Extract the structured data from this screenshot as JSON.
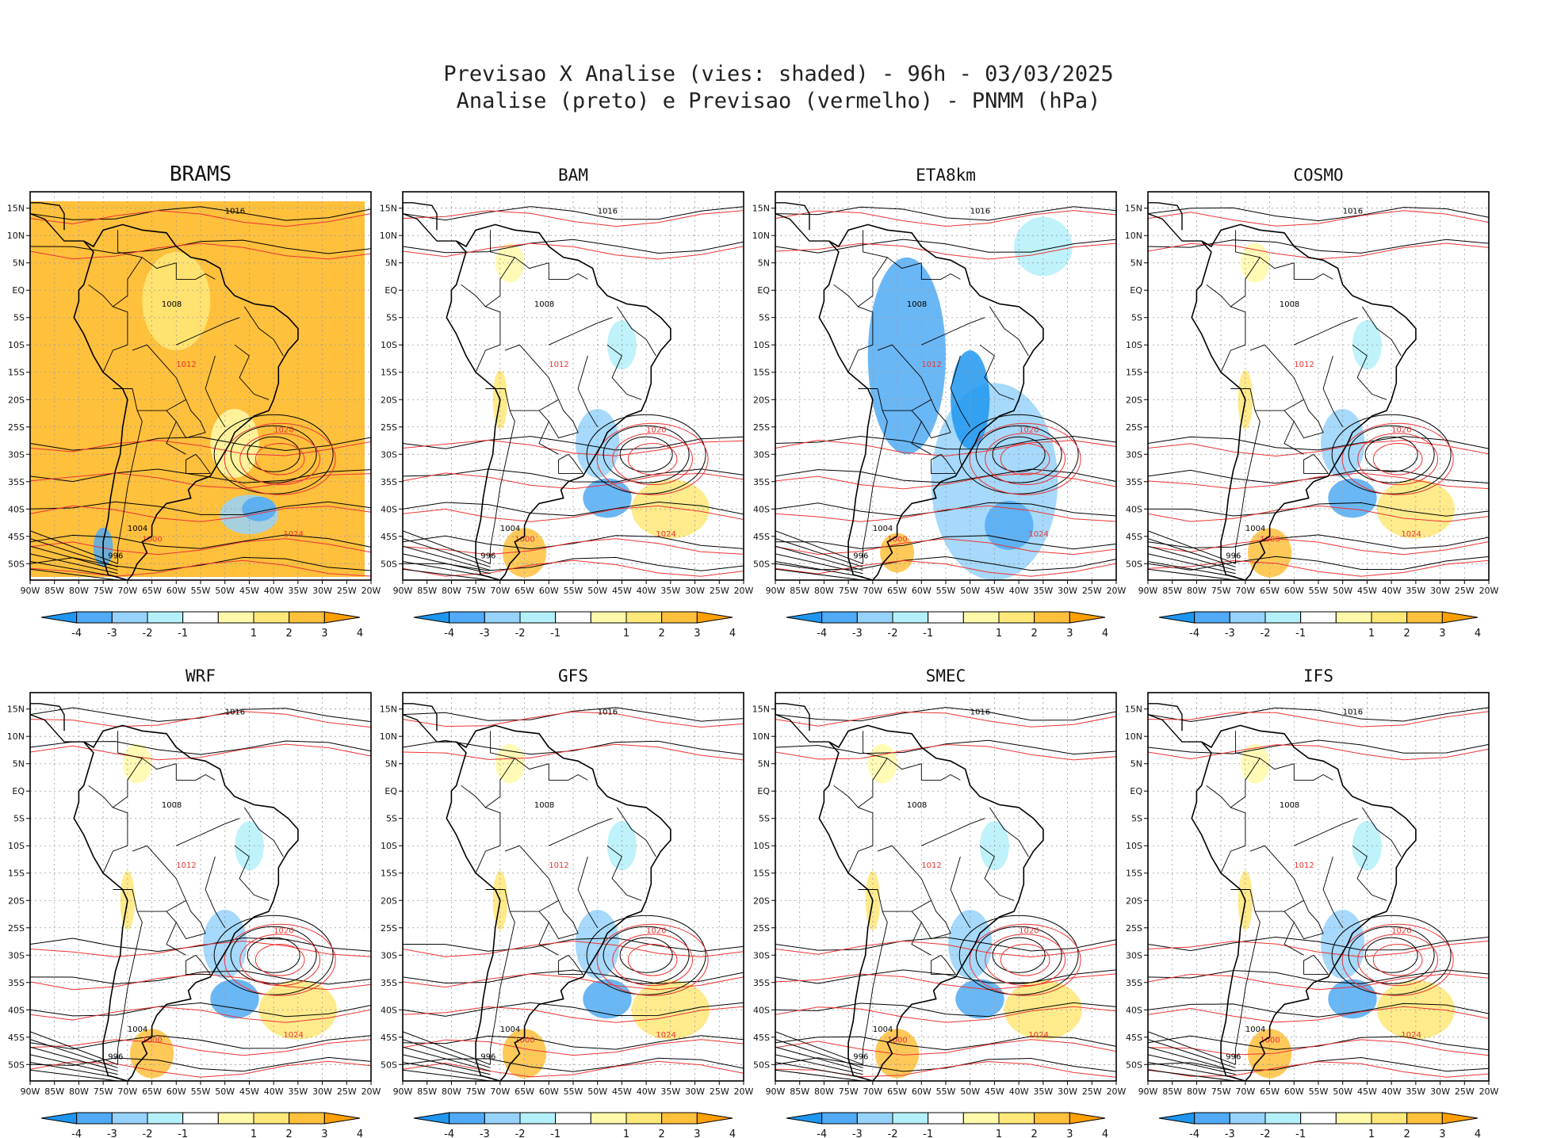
{
  "title": {
    "line1": "Previsao X Analise (vies: shaded) - 96h - 03/03/2025",
    "line2": "Analise (preto) e Previsao (vermelho) - PNMM (hPa)"
  },
  "panels": [
    {
      "name": "BRAMS",
      "bias": "warm"
    },
    {
      "name": "BAM",
      "bias": "mixed"
    },
    {
      "name": "ETA8km",
      "bias": "cold"
    },
    {
      "name": "COSMO",
      "bias": "mixed"
    },
    {
      "name": "WRF",
      "bias": "mixed"
    },
    {
      "name": "GFS",
      "bias": "mixed"
    },
    {
      "name": "SMEC",
      "bias": "mixed"
    },
    {
      "name": "IFS",
      "bias": "mixed"
    }
  ],
  "lat_labels": [
    "15N",
    "10N",
    "5N",
    "EQ",
    "5S",
    "10S",
    "15S",
    "20S",
    "25S",
    "30S",
    "35S",
    "40S",
    "45S",
    "50S"
  ],
  "lon_labels": [
    "90W",
    "85W",
    "80W",
    "75W",
    "70W",
    "65W",
    "60W",
    "55W",
    "50W",
    "45W",
    "40W",
    "35W",
    "30W",
    "25W",
    "20W"
  ],
  "colorbar": {
    "labels": [
      "-4",
      "-3",
      "-2",
      "-1",
      "1",
      "2",
      "3",
      "4"
    ],
    "colors": [
      "#1e96f0",
      "#50aaf5",
      "#96d2fa",
      "#b4f0fa",
      "#ffffff",
      "#fffaaa",
      "#ffe878",
      "#ffc03c",
      "#ffa000"
    ]
  },
  "isobar_labels": [
    "1016",
    "1012",
    "1008",
    "1020",
    "1004",
    "1000",
    "996",
    "1024"
  ],
  "line_colors": {
    "analysis": "#000000",
    "forecast": "#ee3333"
  }
}
